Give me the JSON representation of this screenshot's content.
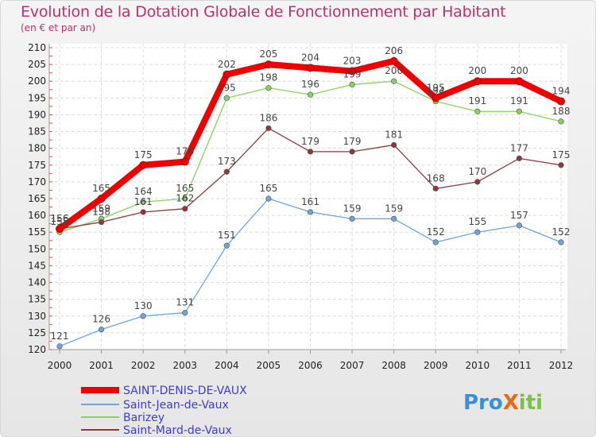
{
  "chart_data": {
    "type": "line",
    "title": "Evolution de la Dotation Globale de Fonctionnement par Habitant",
    "subtitle": "(en € et par an)",
    "xlabel": "",
    "ylabel": "",
    "x": [
      "2000",
      "2001",
      "2002",
      "2003",
      "2004",
      "2005",
      "2006",
      "2007",
      "2008",
      "2009",
      "2010",
      "2011",
      "2012"
    ],
    "ylim": [
      120,
      210
    ],
    "yticks": [
      120,
      125,
      130,
      135,
      140,
      145,
      150,
      155,
      160,
      165,
      170,
      175,
      180,
      185,
      190,
      195,
      200,
      205,
      210
    ],
    "grid": true,
    "legend_position": "bottom-left",
    "series": [
      {
        "name": "SAINT-DENIS-DE-VAUX",
        "color": "#ee0000",
        "values": [
          156,
          165,
          175,
          176,
          202,
          205,
          204,
          203,
          206,
          195,
          200,
          200,
          194
        ]
      },
      {
        "name": "Saint-Jean-de-Vaux",
        "color": "#6fa4d8",
        "values": [
          121,
          126,
          130,
          131,
          151,
          165,
          161,
          159,
          159,
          152,
          155,
          157,
          152
        ]
      },
      {
        "name": "Barizey",
        "color": "#88d060",
        "values": [
          155,
          159,
          164,
          165,
          195,
          198,
          196,
          199,
          200,
          194,
          191,
          191,
          188
        ]
      },
      {
        "name": "Saint-Mard-de-Vaux",
        "color": "#8b3a3a",
        "values": [
          156,
          158,
          161,
          162,
          173,
          186,
          179,
          179,
          181,
          168,
          170,
          177,
          175
        ]
      }
    ]
  },
  "logo": {
    "text": "ProXiti"
  }
}
